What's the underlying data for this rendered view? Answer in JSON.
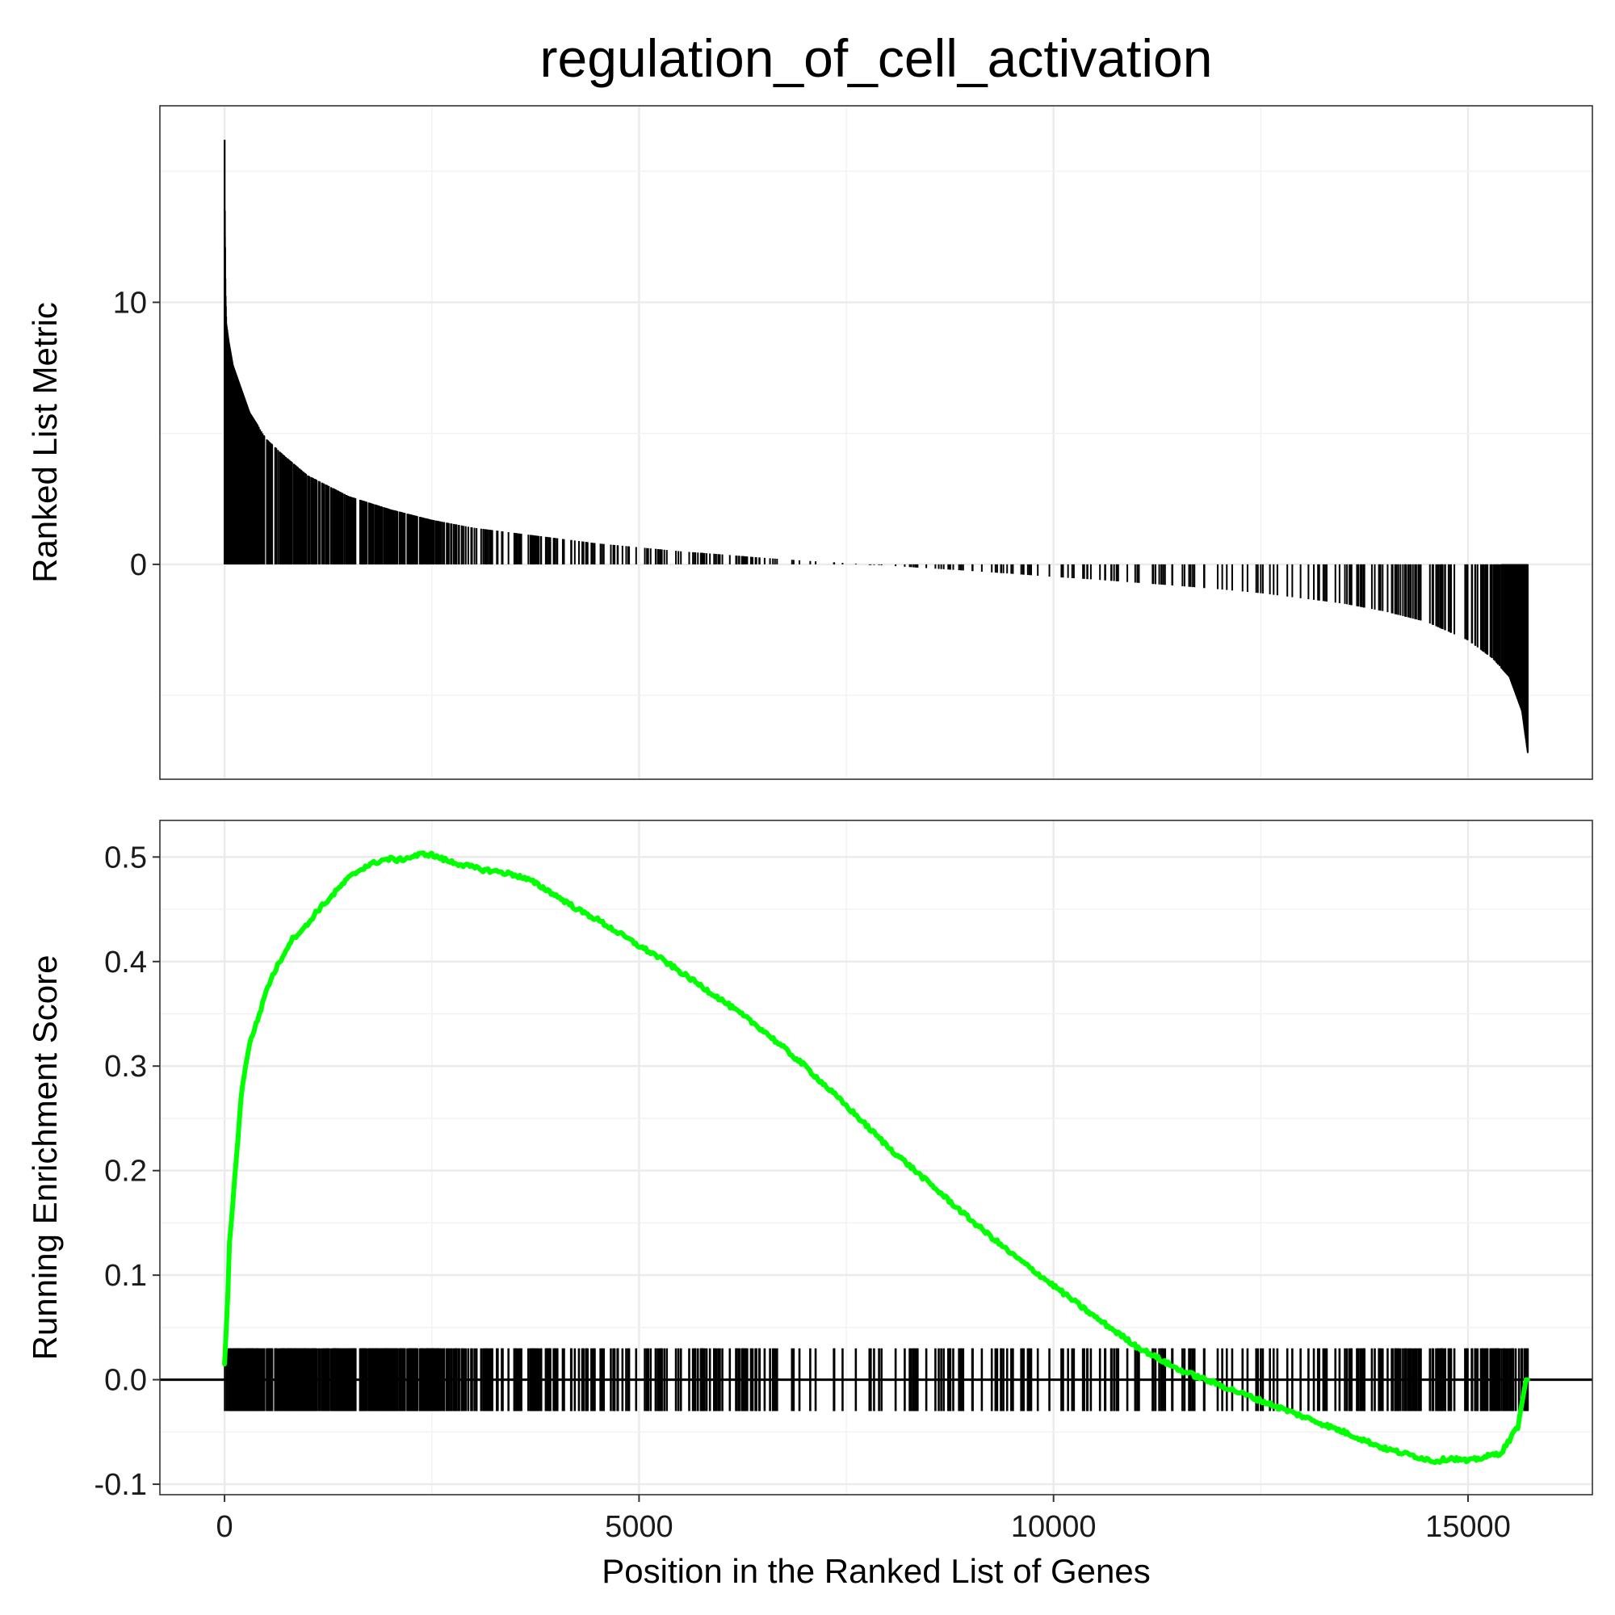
{
  "chart_data": {
    "type": "gsea-enrichment-plot",
    "title": "regulation_of_cell_activation",
    "x_axis": {
      "label": "Position in the Ranked List of Genes",
      "ticks": [
        0,
        5000,
        10000,
        15000
      ],
      "range": [
        -780,
        16500
      ]
    },
    "panels": [
      {
        "id": "ranked-list",
        "type": "bar",
        "ylabel": "Ranked List Metric",
        "ylim": [
          -8.2,
          17.5
        ],
        "y_ticks": [
          0,
          10
        ],
        "n_genes": 15720,
        "bar_color": "#000000",
        "metric_curve": [
          [
            0,
            16.2
          ],
          [
            2,
            14.0
          ],
          [
            5,
            12.5
          ],
          [
            10,
            10.5
          ],
          [
            20,
            9.2
          ],
          [
            50,
            8.5
          ],
          [
            100,
            7.6
          ],
          [
            200,
            6.7
          ],
          [
            300,
            5.8
          ],
          [
            500,
            4.8
          ],
          [
            700,
            4.2
          ],
          [
            1000,
            3.4
          ],
          [
            1500,
            2.6
          ],
          [
            2000,
            2.1
          ],
          [
            2500,
            1.7
          ],
          [
            3000,
            1.4
          ],
          [
            3500,
            1.2
          ],
          [
            4000,
            1.0
          ],
          [
            4500,
            0.8
          ],
          [
            5000,
            0.65
          ],
          [
            5500,
            0.5
          ],
          [
            6000,
            0.38
          ],
          [
            6500,
            0.25
          ],
          [
            7000,
            0.14
          ],
          [
            7500,
            0.05
          ],
          [
            8000,
            -0.05
          ],
          [
            8500,
            -0.15
          ],
          [
            9000,
            -0.25
          ],
          [
            9500,
            -0.36
          ],
          [
            10000,
            -0.48
          ],
          [
            10500,
            -0.58
          ],
          [
            11000,
            -0.7
          ],
          [
            11500,
            -0.82
          ],
          [
            12000,
            -0.95
          ],
          [
            12500,
            -1.1
          ],
          [
            13000,
            -1.3
          ],
          [
            13500,
            -1.5
          ],
          [
            14000,
            -1.8
          ],
          [
            14500,
            -2.2
          ],
          [
            15000,
            -2.9
          ],
          [
            15300,
            -3.6
          ],
          [
            15500,
            -4.3
          ],
          [
            15650,
            -5.6
          ],
          [
            15720,
            -7.2
          ]
        ]
      },
      {
        "id": "running-es",
        "type": "line",
        "ylabel": "Running Enrichment Score",
        "ylim": [
          -0.11,
          0.535
        ],
        "y_ticks": [
          -0.1,
          0.0,
          0.1,
          0.2,
          0.3,
          0.4,
          0.5
        ],
        "y_tick_labels": [
          "-0.1",
          "0.0",
          "0.1",
          "0.2",
          "0.3",
          "0.4",
          "0.5"
        ],
        "zero_line": 0,
        "line_color": "#00ff00",
        "hit_band": [
          -0.03,
          0.03
        ],
        "series": [
          {
            "x": [
              0,
              30,
              60,
              100,
              150,
              200,
              250,
              300,
              350,
              400,
              450,
              500,
              600,
              700,
              800,
              900,
              1000,
              1100,
              1200,
              1300,
              1400,
              1500,
              1600,
              1700,
              1800,
              1900,
              2000,
              2100,
              2200,
              2300,
              2400,
              2500,
              2700,
              2900,
              3100,
              3300,
              3500,
              3700,
              3900,
              4100,
              4300,
              4500,
              4700,
              4900,
              5000,
              5200,
              5500,
              6000,
              6500,
              7000,
              7500,
              8000,
              8500,
              9000,
              9500,
              10000,
              10500,
              11000,
              11500,
              12000,
              12500,
              13000,
              13500,
              14000,
              14300,
              14600,
              14800,
              15000,
              15200,
              15400,
              15600,
              15700
            ],
            "y": [
              0.015,
              0.06,
              0.13,
              0.17,
              0.22,
              0.27,
              0.3,
              0.32,
              0.333,
              0.345,
              0.357,
              0.372,
              0.39,
              0.405,
              0.42,
              0.428,
              0.435,
              0.447,
              0.455,
              0.463,
              0.472,
              0.48,
              0.486,
              0.491,
              0.494,
              0.497,
              0.498,
              0.497,
              0.499,
              0.501,
              0.503,
              0.502,
              0.496,
              0.492,
              0.488,
              0.486,
              0.483,
              0.477,
              0.468,
              0.458,
              0.448,
              0.44,
              0.43,
              0.42,
              0.415,
              0.406,
              0.39,
              0.363,
              0.334,
              0.3,
              0.262,
              0.223,
              0.188,
              0.153,
              0.12,
              0.09,
              0.06,
              0.032,
              0.01,
              -0.005,
              -0.02,
              -0.035,
              -0.05,
              -0.066,
              -0.072,
              -0.078,
              -0.075,
              -0.078,
              -0.074,
              -0.07,
              -0.045,
              0.0
            ]
          }
        ]
      }
    ],
    "grid": true
  }
}
